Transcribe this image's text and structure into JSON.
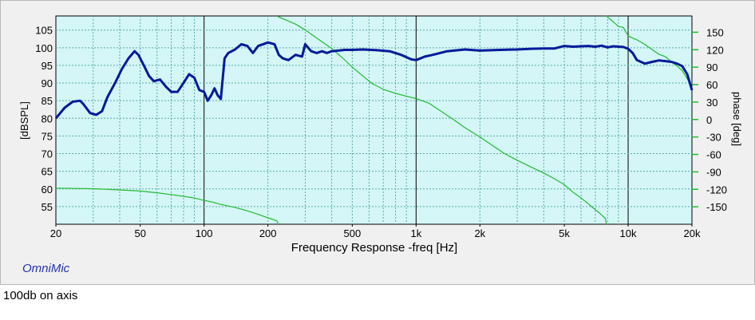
{
  "chart_data": {
    "type": "line",
    "xlabel": "Frequency Response -freq [Hz]",
    "ylabel_left": "[dBSPL]",
    "ylabel_right": "phase [deg]",
    "x_scale": "log",
    "xlim": [
      20,
      20000
    ],
    "ylim_left": [
      50,
      109
    ],
    "ylim_right": [
      -180,
      178
    ],
    "x_ticks": [
      {
        "value": 20,
        "label": "20"
      },
      {
        "value": 50,
        "label": "50"
      },
      {
        "value": 100,
        "label": "100"
      },
      {
        "value": 200,
        "label": "200"
      },
      {
        "value": 500,
        "label": "500"
      },
      {
        "value": 1000,
        "label": "1k"
      },
      {
        "value": 2000,
        "label": "2k"
      },
      {
        "value": 5000,
        "label": "5k"
      },
      {
        "value": 10000,
        "label": "10k"
      },
      {
        "value": 20000,
        "label": "20k"
      }
    ],
    "y_ticks_left": [
      55,
      60,
      65,
      70,
      75,
      80,
      85,
      90,
      95,
      100,
      105
    ],
    "y_ticks_right": [
      -150,
      -120,
      -90,
      -60,
      -30,
      0,
      30,
      60,
      90,
      120,
      150
    ],
    "grid": true,
    "series": [
      {
        "axis": "left",
        "color": "#001a99",
        "x": [
          20,
          22,
          24,
          26,
          27,
          29,
          31,
          33,
          35,
          38,
          41,
          44,
          47,
          49,
          52,
          55,
          58,
          62,
          66,
          70,
          75,
          80,
          85,
          90,
          95,
          100,
          104,
          108,
          112,
          116,
          120,
          125,
          130,
          140,
          150,
          160,
          170,
          180,
          190,
          200,
          215,
          225,
          235,
          250,
          270,
          290,
          300,
          320,
          340,
          360,
          380,
          400,
          430,
          460,
          500,
          560,
          650,
          750,
          850,
          950,
          1000,
          1100,
          1200,
          1400,
          1700,
          2000,
          2500,
          3000,
          3500,
          4000,
          4500,
          5000,
          5500,
          6000,
          6500,
          7000,
          7500,
          8000,
          8500,
          9000,
          9500,
          10000,
          10500,
          11000,
          12000,
          13000,
          14000,
          15000,
          16000,
          17000,
          18000,
          19000,
          20000
        ],
        "values": [
          80,
          83,
          84.7,
          85,
          84,
          81.5,
          81,
          82,
          86,
          90,
          94,
          97,
          99,
          98,
          95,
          92,
          90.5,
          91,
          89,
          87.5,
          87.5,
          90,
          92.5,
          91.5,
          88,
          87.5,
          85,
          86.5,
          88.5,
          86.5,
          85.5,
          97,
          98.5,
          99.5,
          101,
          100.5,
          98.5,
          100.5,
          101,
          101.5,
          101,
          98,
          97,
          96.5,
          98,
          97.5,
          101,
          99,
          98.5,
          99,
          98.5,
          99,
          99.2,
          99.4,
          99.4,
          99.5,
          99.3,
          99,
          98,
          96.7,
          96.5,
          97.5,
          98,
          99,
          99.5,
          99.2,
          99.4,
          99.5,
          99.7,
          99.8,
          99.8,
          100.5,
          100.3,
          100.4,
          100.5,
          100.3,
          100.6,
          100.1,
          100.4,
          100.3,
          100.2,
          99.7,
          98.5,
          96.5,
          95.5,
          96,
          96.4,
          96.2,
          96,
          95.5,
          94.8,
          92.5,
          88
        ]
      },
      {
        "axis": "right",
        "color": "#22bb33",
        "x": [
          20,
          30,
          40,
          50,
          60,
          70,
          80,
          90,
          100,
          110,
          120,
          140,
          160,
          180,
          200,
          220,
          222,
          222.5,
          240,
          270,
          300,
          340,
          400,
          450,
          500,
          560,
          620,
          700,
          800,
          900,
          1000,
          1150,
          1300,
          1500,
          1700,
          2000,
          2300,
          2600,
          3000,
          3500,
          4000,
          4500,
          5000,
          5500,
          6000,
          6500,
          7000,
          7400,
          7800,
          7850,
          7900,
          8000,
          8200,
          8500,
          9000,
          9500,
          10000,
          10500,
          11000,
          12000,
          13000,
          14000,
          15000,
          16000,
          17000,
          18000,
          19000,
          20000
        ],
        "values": [
          -118,
          -119,
          -121,
          -123,
          -126,
          -129,
          -132,
          -135,
          -139,
          -142,
          -146,
          -151,
          -157,
          -163,
          -169,
          -174,
          -176,
          177,
          172,
          164,
          154,
          140,
          122,
          106,
          90,
          75,
          62,
          52,
          45,
          40,
          36,
          28,
          15,
          0,
          -14,
          -30,
          -45,
          -58,
          -70,
          -82,
          -92,
          -102,
          -112,
          -125,
          -135,
          -145,
          -155,
          -162,
          -170,
          -174,
          178,
          176,
          173,
          168,
          160,
          158,
          144,
          140,
          137,
          129,
          120,
          112,
          108,
          99,
          92,
          84,
          70,
          55
        ]
      }
    ]
  },
  "brand": "OmniMic",
  "caption": "100db on axis"
}
